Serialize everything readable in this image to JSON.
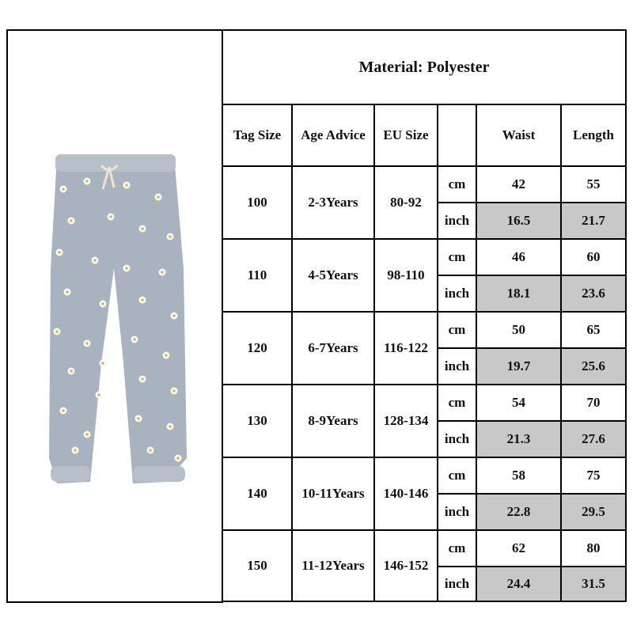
{
  "title": "Material: Polyester",
  "header": [
    "Tag Size",
    "Age Advice",
    "EU Size",
    "Waist",
    "Length"
  ],
  "units": [
    "cm",
    "inch"
  ],
  "rows": [
    {
      "tag_size": 100,
      "age": "2-3Years",
      "eu_size": "80-92",
      "cm": [
        42,
        55
      ],
      "inch": [
        16.5,
        21.7
      ]
    },
    {
      "tag_size": 110,
      "age": "4-5Years",
      "eu_size": "98-110",
      "cm": [
        46,
        60
      ],
      "inch": [
        18.1,
        23.6
      ]
    },
    {
      "tag_size": 120,
      "age": "6-7Years",
      "eu_size": "116-122",
      "cm": [
        50,
        65
      ],
      "inch": [
        19.7,
        25.6
      ]
    },
    {
      "tag_size": 130,
      "age": "8-9Years",
      "eu_size": "128-134",
      "cm": [
        54,
        70
      ],
      "inch": [
        21.3,
        27.6
      ]
    },
    {
      "tag_size": 140,
      "age": "10-11Years",
      "eu_size": "140-146",
      "cm": [
        58,
        75
      ],
      "inch": [
        22.8,
        29.5
      ]
    },
    {
      "tag_size": 150,
      "age": "11-12Years",
      "eu_size": "146-152",
      "cm": [
        62,
        80
      ],
      "inch": [
        24.4,
        31.5
      ]
    }
  ]
}
